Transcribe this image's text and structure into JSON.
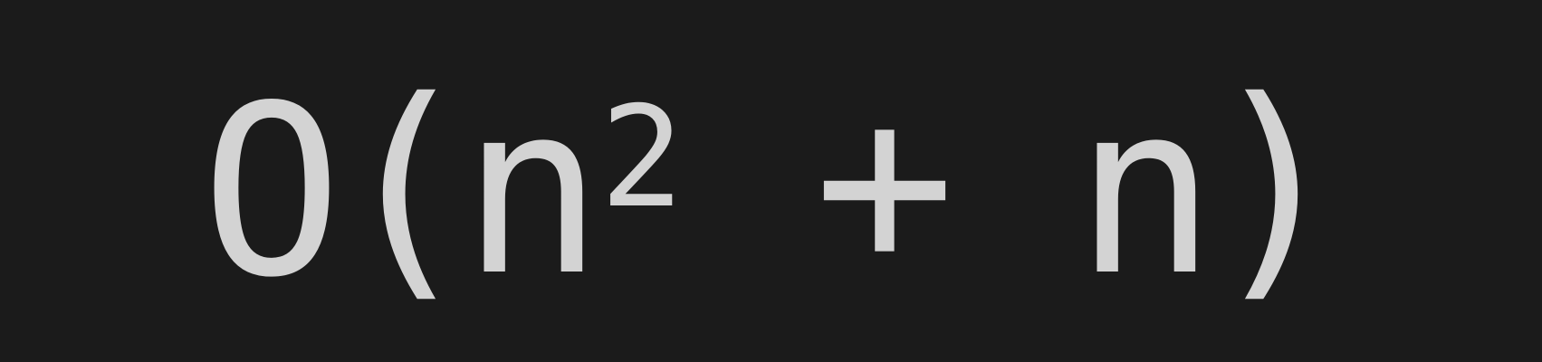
{
  "colors": {
    "background": "#1b1b1b",
    "text": "#d3d3d3"
  },
  "formula": {
    "function": "O",
    "open_paren": "(",
    "base": "n",
    "exponent": "2",
    "operator": "+",
    "term": "n",
    "close_paren": ")"
  }
}
